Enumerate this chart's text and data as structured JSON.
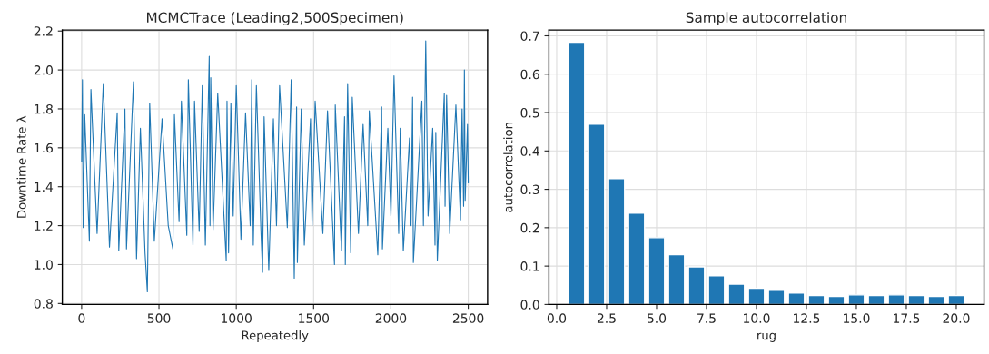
{
  "chart_data": [
    {
      "type": "line",
      "title": "MCMCTrace (Leading2,500Specimen)",
      "xlabel": "Repeatedly",
      "ylabel": "Downtime Rate λ",
      "grid": true,
      "xlim": [
        -125,
        2625
      ],
      "xticks": [
        0,
        500,
        1000,
        1500,
        2000,
        2500
      ],
      "ylim": [
        0.795,
        2.205
      ],
      "yticks": [
        {
          "value": 0.8,
          "label": "0.8"
        },
        {
          "value": 1.0,
          "label": "1.0"
        },
        {
          "value": 1.2,
          "label": "1.2"
        },
        {
          "value": 1.4,
          "label": "1.4"
        },
        {
          "value": 1.6,
          "label": "1.6"
        },
        {
          "value": 1.8,
          "label": "1.8"
        },
        {
          "value": 2.0,
          "label": "2.0"
        },
        {
          "value": 2.2,
          "label": "2.2"
        }
      ],
      "series": [
        {
          "color": "#1f77b4",
          "x": [
            0,
            5,
            10,
            20,
            50,
            60,
            100,
            140,
            180,
            230,
            240,
            280,
            290,
            335,
            355,
            380,
            410,
            425,
            440,
            470,
            520,
            560,
            590,
            600,
            630,
            645,
            680,
            690,
            720,
            730,
            760,
            780,
            800,
            825,
            830,
            835,
            850,
            880,
            935,
            940,
            950,
            965,
            980,
            1000,
            1030,
            1060,
            1090,
            1100,
            1110,
            1130,
            1160,
            1170,
            1180,
            1210,
            1240,
            1260,
            1280,
            1330,
            1355,
            1375,
            1390,
            1395,
            1420,
            1440,
            1480,
            1490,
            1510,
            1560,
            1590,
            1635,
            1640,
            1680,
            1700,
            1705,
            1720,
            1740,
            1750,
            1790,
            1820,
            1850,
            1860,
            1915,
            1940,
            1945,
            1980,
            2000,
            2020,
            2050,
            2060,
            2080,
            2120,
            2130,
            2140,
            2145,
            2200,
            2210,
            2225,
            2240,
            2270,
            2285,
            2290,
            2300,
            2345,
            2350,
            2360,
            2380,
            2420,
            2450,
            2460,
            2470,
            2475,
            2480,
            2495,
            2500
          ],
          "values": [
            1.53,
            1.95,
            1.19,
            1.77,
            1.12,
            1.9,
            1.16,
            1.93,
            1.09,
            1.78,
            1.07,
            1.8,
            1.08,
            1.94,
            1.03,
            1.7,
            1.06,
            0.86,
            1.83,
            1.12,
            1.75,
            1.2,
            1.08,
            1.77,
            1.22,
            1.84,
            1.15,
            1.95,
            1.1,
            1.84,
            1.17,
            1.92,
            1.1,
            2.07,
            1.2,
            1.96,
            1.18,
            1.88,
            1.02,
            1.84,
            1.06,
            1.83,
            1.25,
            1.92,
            1.13,
            1.78,
            1.2,
            1.95,
            1.1,
            1.92,
            1.16,
            0.96,
            1.76,
            0.97,
            1.75,
            1.2,
            1.92,
            1.19,
            1.95,
            0.93,
            1.81,
            1.01,
            1.8,
            1.1,
            1.75,
            1.2,
            1.84,
            1.16,
            1.79,
            1.0,
            1.82,
            1.07,
            1.76,
            1.0,
            1.93,
            1.06,
            1.86,
            1.16,
            1.72,
            1.2,
            1.79,
            1.05,
            1.81,
            1.08,
            1.7,
            1.25,
            1.97,
            1.16,
            1.7,
            1.07,
            1.65,
            1.2,
            1.86,
            1.01,
            1.84,
            1.2,
            2.15,
            1.25,
            1.7,
            1.1,
            1.68,
            1.02,
            1.88,
            1.3,
            1.87,
            1.16,
            1.82,
            1.23,
            1.8,
            1.3,
            2.0,
            1.33,
            1.72,
            1.42
          ]
        }
      ]
    },
    {
      "type": "bar",
      "title": "Sample autocorrelation",
      "xlabel": "rug",
      "ylabel": "autocorrelation",
      "grid": true,
      "xlim": [
        -0.39,
        21.39
      ],
      "xticks": [
        {
          "value": 0,
          "label": "0.0"
        },
        {
          "value": 2.5,
          "label": "2.5"
        },
        {
          "value": 5,
          "label": "5.0"
        },
        {
          "value": 7.5,
          "label": "7.5"
        },
        {
          "value": 10,
          "label": "10.0"
        },
        {
          "value": 12.5,
          "label": "12.5"
        },
        {
          "value": 15,
          "label": "15.0"
        },
        {
          "value": 17.5,
          "label": "17.5"
        },
        {
          "value": 20,
          "label": "20.0"
        }
      ],
      "ylim": [
        0,
        0.715
      ],
      "yticks": [
        {
          "value": 0,
          "label": "0.0"
        },
        {
          "value": 0.1,
          "label": "0.1"
        },
        {
          "value": 0.2,
          "label": "0.2"
        },
        {
          "value": 0.3,
          "label": "0.3"
        },
        {
          "value": 0.4,
          "label": "0.4"
        },
        {
          "value": 0.5,
          "label": "0.5"
        },
        {
          "value": 0.6,
          "label": "0.6"
        },
        {
          "value": 0.7,
          "label": "0.7"
        }
      ],
      "series": [
        {
          "color": "#1f77b4",
          "x": [
            1,
            2,
            3,
            4,
            5,
            6,
            7,
            8,
            9,
            10,
            11,
            12,
            13,
            14,
            15,
            16,
            17,
            18,
            19,
            20
          ],
          "values": [
            0.683,
            0.47,
            0.328,
            0.238,
            0.174,
            0.13,
            0.098,
            0.075,
            0.053,
            0.042,
            0.037,
            0.03,
            0.023,
            0.021,
            0.025,
            0.023,
            0.025,
            0.023,
            0.021,
            0.023
          ]
        }
      ]
    }
  ]
}
